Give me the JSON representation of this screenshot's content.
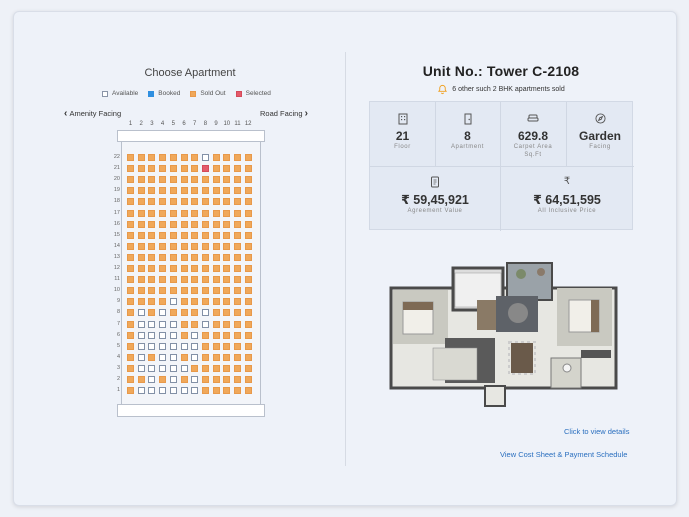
{
  "left": {
    "title": "Choose Apartment",
    "legend": [
      {
        "label": "Available",
        "color": "#ffffff"
      },
      {
        "label": "Booked",
        "color": "#2f8fe0"
      },
      {
        "label": "Sold Out",
        "color": "#f0a85a"
      },
      {
        "label": "Selected",
        "color": "#e45a6a"
      }
    ],
    "nav_left": "Amenity Facing",
    "nav_right": "Road Facing",
    "columns": [
      "1",
      "2",
      "3",
      "4",
      "5",
      "6",
      "7",
      "8",
      "9",
      "10",
      "11",
      "12"
    ],
    "floors": [
      "22",
      "21",
      "20",
      "19",
      "18",
      "17",
      "16",
      "15",
      "14",
      "13",
      "12",
      "11",
      "10",
      "9",
      "8",
      "7",
      "6",
      "5",
      "4",
      "3",
      "2",
      "1"
    ],
    "grid": [
      "SSSSSSSASSSS",
      "SSSSSSSXSSSS",
      "SSSSSSSSSSSS",
      "SSSSSSSSSSSS",
      "SSSSSSSSSSSS",
      "SSSSSSSSSSSS",
      "SSSSSSSSSSSS",
      "SSSSSSSSSSSS",
      "SSSSSSSSSSSS",
      "SSSSSSSSSSSS",
      "SSSSSSSSSSSS",
      "SSSSSSSSSSSS",
      "SSSSSSSSSSSS",
      "SSSSASSSSSSS",
      "SASASSSASSSS",
      "SAAAASSASSSS",
      "SAAAASASSSSS",
      "SAAAAAASSSSS",
      "SASAASASSSSS",
      "SAAAAASSSSSS",
      "SSASASASSSSS",
      "SAAAAAASSSSS"
    ]
  },
  "unit": {
    "title": "Unit No.: Tower C-2108",
    "sold_note": "6 other such 2 BHK apartments sold",
    "floor_value": "21",
    "floor_label": "Floor",
    "apartment_value": "8",
    "apartment_label": "Apartment",
    "area_value": "629.8",
    "area_label": "Carpet Area",
    "area_unit": "Sq.Ft",
    "facing_value": "Garden",
    "facing_label": "Facing",
    "agreement_value": "₹ 59,45,921",
    "agreement_label": "Agreement Value",
    "inclusive_value": "₹ 64,51,595",
    "inclusive_label": "All Inclusive Price"
  },
  "links": {
    "details": "Click to view details",
    "cost_sheet": "View Cost Sheet & Payment Schedule"
  },
  "icons": {
    "floor": "building-icon",
    "apartment": "door-icon",
    "area": "sofa-icon",
    "facing": "compass-icon",
    "agreement": "document-icon",
    "inclusive": "rupee-icon",
    "sold": "bell-icon"
  },
  "colors": {
    "sold": "#f0a85a",
    "selected": "#e45a6a",
    "booked": "#2f8fe0",
    "link": "#2a6fbf"
  }
}
